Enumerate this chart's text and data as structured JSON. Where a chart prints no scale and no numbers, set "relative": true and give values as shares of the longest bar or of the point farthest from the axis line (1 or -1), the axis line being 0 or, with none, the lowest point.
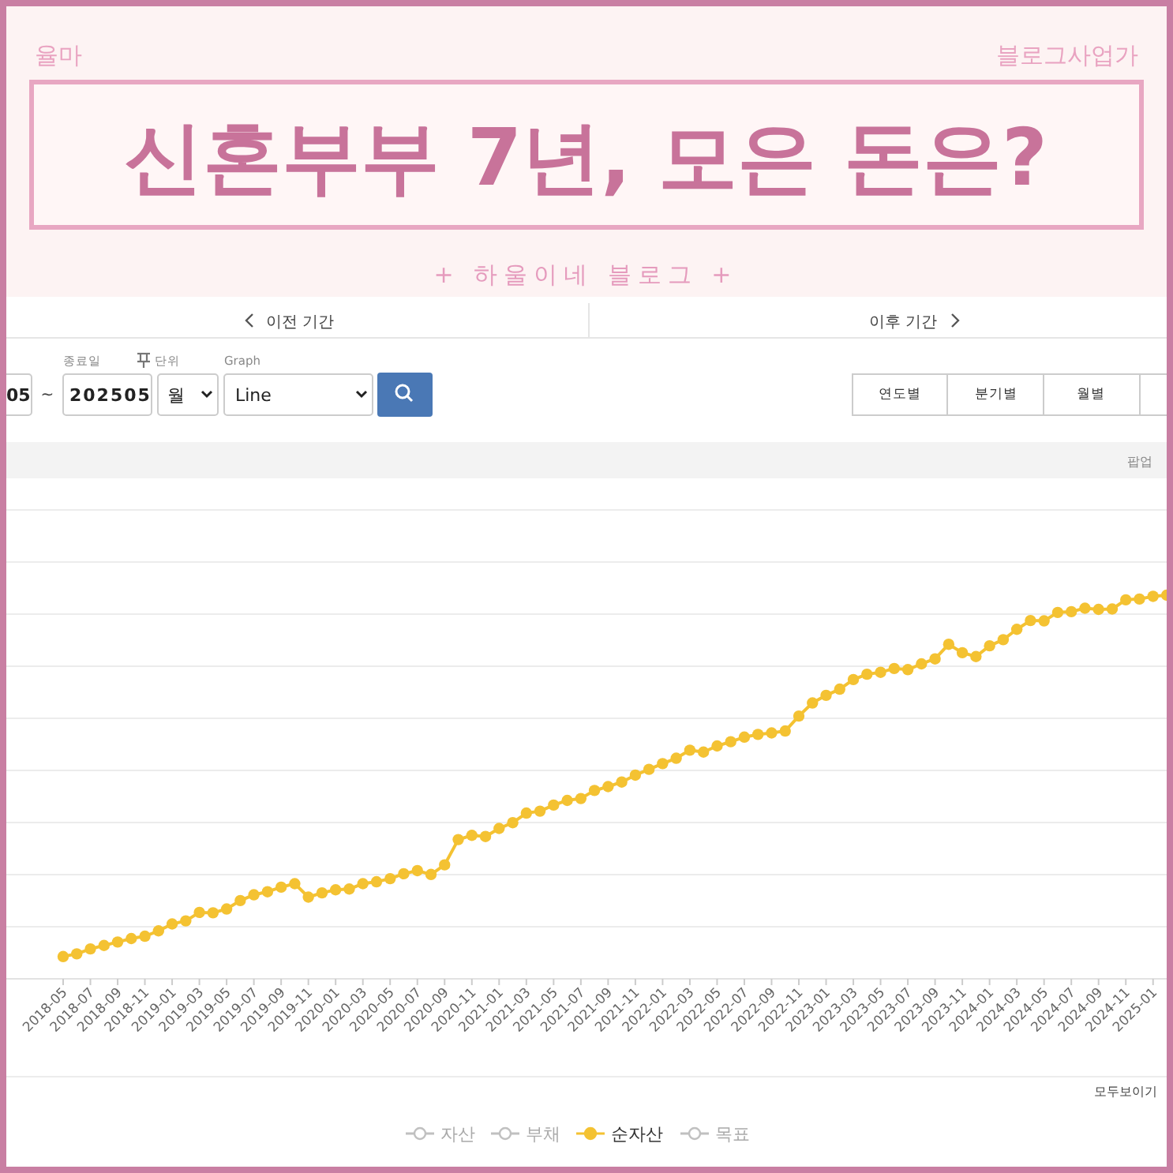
{
  "chart_data": {
    "type": "line",
    "title": "신혼부부 7년, 모은 돈은?",
    "subtitle": "+ 하울이네 블로그 +",
    "relative": true,
    "grid": "y",
    "legend": "bottom",
    "marker": "circle",
    "line_style": "solid",
    "annotations": [
      "율마",
      "블로그사업가",
      "이전 기간",
      "이후 기간",
      "종료일",
      "단위",
      "Graph",
      "05",
      "~",
      "202505",
      "월",
      "Line",
      "연도별",
      "분기별",
      "월별",
      "팝업",
      "모두보이기"
    ],
    "categories": [
      "2018-05",
      null,
      "2018-07",
      null,
      "2018-09",
      null,
      "2018-11",
      null,
      "2019-01",
      null,
      "2019-03",
      null,
      "2019-05",
      null,
      "2019-07",
      null,
      "2019-09",
      null,
      "2019-11",
      null,
      "2020-01",
      null,
      "2020-03",
      null,
      "2020-05",
      null,
      "2020-07",
      null,
      "2020-09",
      null,
      "2020-11",
      null,
      "2021-01",
      null,
      "2021-03",
      null,
      "2021-05",
      null,
      "2021-07",
      null,
      "2021-09",
      null,
      "2021-11",
      null,
      "2022-01",
      null,
      "2022-03",
      null,
      "2022-05",
      null,
      "2022-07",
      null,
      "2022-09",
      null,
      "2022-11",
      null,
      "2023-01",
      null,
      "2023-03",
      null,
      "2023-05",
      null,
      "2023-07",
      null,
      "2023-09",
      null,
      "2023-11",
      null,
      "2024-01",
      null,
      "2024-03",
      null,
      "2024-05",
      null,
      "2024-07",
      null,
      "2024-09",
      null,
      "2024-11",
      null,
      "2025-01",
      null
    ],
    "series": [
      {
        "name": "자산",
        "color": "#c0c0c0",
        "values": [
          null,
          null,
          null,
          null,
          null,
          null,
          null,
          null,
          null,
          null,
          null,
          null,
          null,
          null,
          null,
          null,
          null,
          null,
          null,
          null,
          null,
          null,
          null,
          null,
          null,
          null,
          null,
          null,
          null,
          null,
          null,
          null,
          null,
          null,
          null,
          null,
          null,
          null,
          null,
          null,
          null,
          null,
          null,
          null,
          null,
          null,
          null,
          null,
          null,
          null,
          null,
          null,
          null,
          null,
          null,
          null,
          null,
          null,
          null,
          null,
          null,
          null,
          null,
          null,
          null,
          null,
          null,
          null,
          null,
          null,
          null,
          null,
          null,
          null,
          null,
          null,
          null,
          null,
          null,
          null,
          null,
          null
        ]
      },
      {
        "name": "부채",
        "color": "#c0c0c0",
        "values": [
          null,
          null,
          null,
          null,
          null,
          null,
          null,
          null,
          null,
          null,
          null,
          null,
          null,
          null,
          null,
          null,
          null,
          null,
          null,
          null,
          null,
          null,
          null,
          null,
          null,
          null,
          null,
          null,
          null,
          null,
          null,
          null,
          null,
          null,
          null,
          null,
          null,
          null,
          null,
          null,
          null,
          null,
          null,
          null,
          null,
          null,
          null,
          null,
          null,
          null,
          null,
          null,
          null,
          null,
          null,
          null,
          null,
          null,
          null,
          null,
          null,
          null,
          null,
          null,
          null,
          null,
          null,
          null,
          null,
          null,
          null,
          null,
          null,
          null,
          null,
          null,
          null,
          null,
          null,
          null,
          null,
          null
        ]
      },
      {
        "name": "순자산",
        "color": "#f4c232",
        "values": [
          0.058,
          0.065,
          0.078,
          0.087,
          0.096,
          0.105,
          0.111,
          0.125,
          0.143,
          0.151,
          0.173,
          0.172,
          0.182,
          0.204,
          0.219,
          0.227,
          0.239,
          0.248,
          0.213,
          0.224,
          0.232,
          0.234,
          0.248,
          0.253,
          0.261,
          0.274,
          0.282,
          0.272,
          0.297,
          0.363,
          0.374,
          0.371,
          0.392,
          0.407,
          0.432,
          0.437,
          0.453,
          0.465,
          0.47,
          0.491,
          0.501,
          0.513,
          0.531,
          0.546,
          0.561,
          0.575,
          0.596,
          0.591,
          0.607,
          0.618,
          0.63,
          0.637,
          0.641,
          0.646,
          0.685,
          0.719,
          0.739,
          0.755,
          0.78,
          0.794,
          0.799,
          0.809,
          0.806,
          0.821,
          0.834,
          0.872,
          0.85,
          0.84,
          0.868,
          0.884,
          0.911,
          0.934,
          0.933,
          0.955,
          0.957,
          0.966,
          0.963,
          0.964,
          0.988,
          0.99,
          0.997,
          1
        ]
      },
      {
        "name": "목표",
        "color": "#c0c0c0",
        "values": [
          null,
          null,
          null,
          null,
          null,
          null,
          null,
          null,
          null,
          null,
          null,
          null,
          null,
          null,
          null,
          null,
          null,
          null,
          null,
          null,
          null,
          null,
          null,
          null,
          null,
          null,
          null,
          null,
          null,
          null,
          null,
          null,
          null,
          null,
          null,
          null,
          null,
          null,
          null,
          null,
          null,
          null,
          null,
          null,
          null,
          null,
          null,
          null,
          null,
          null,
          null,
          null,
          null,
          null,
          null,
          null,
          null,
          null,
          null,
          null,
          null,
          null,
          null,
          null,
          null,
          null,
          null,
          null,
          null,
          null,
          null,
          null,
          null,
          null,
          null,
          null,
          null,
          null,
          null,
          null,
          null,
          null
        ]
      }
    ]
  }
}
